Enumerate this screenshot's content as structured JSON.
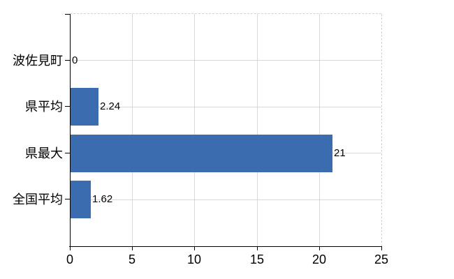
{
  "chart_data": {
    "type": "bar",
    "orientation": "horizontal",
    "title": "",
    "xlabel": "",
    "ylabel": "",
    "categories": [
      "波佐見町",
      "県平均",
      "県最大",
      "全国平均"
    ],
    "values": [
      0,
      2.24,
      21,
      1.62
    ],
    "value_labels": [
      "0",
      "2.24",
      "21",
      "1.62"
    ],
    "xlim": [
      0,
      25
    ],
    "xticks": [
      0,
      5,
      10,
      15,
      20,
      25
    ],
    "xtick_labels": [
      "0",
      "5",
      "10",
      "15",
      "20",
      "25"
    ],
    "grid": true,
    "legend": false,
    "colors": {
      "bar": "#3b6caf",
      "gridline": "#d9d9d9",
      "plot_border_dashed": "#d3d3d3",
      "axis": "#000000",
      "text": "#000000",
      "background": "#ffffff"
    }
  }
}
